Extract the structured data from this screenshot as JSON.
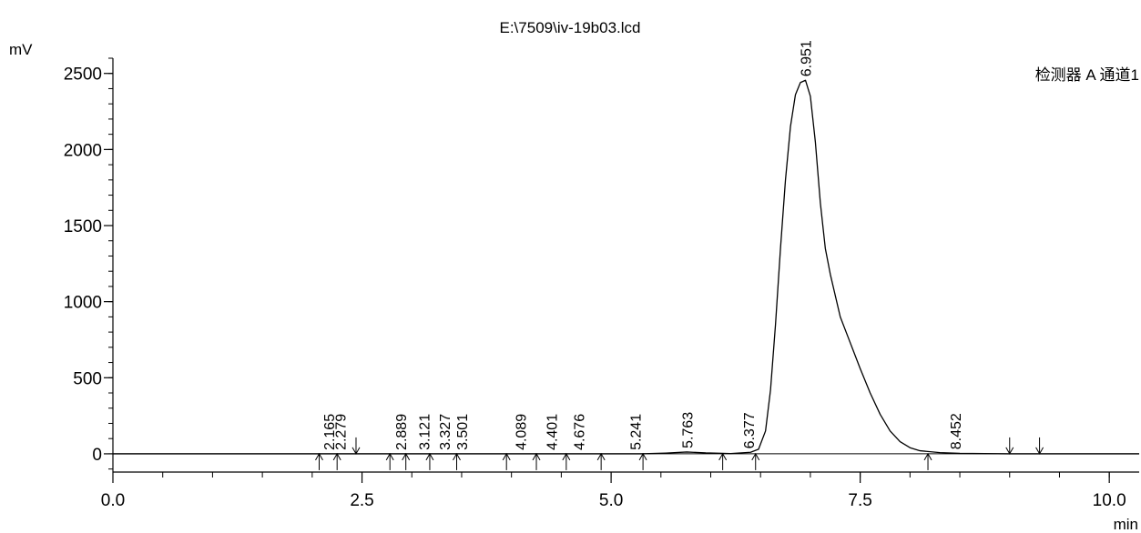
{
  "chart_data": {
    "type": "line",
    "title": "E:\\7509\\iv-19b03.lcd",
    "ylabel": "mV",
    "xlabel": "min",
    "legend": "检测器 A 通道1",
    "legend_position": "top-right",
    "grid": false,
    "xlim": [
      0.0,
      10.3
    ],
    "ylim": [
      -120,
      2600
    ],
    "x_ticks": [
      "0.0",
      "2.5",
      "5.0",
      "7.5",
      "10.0"
    ],
    "x_tick_values": [
      0.0,
      2.5,
      5.0,
      7.5,
      10.0
    ],
    "y_ticks": [
      "0",
      "500",
      "1000",
      "1500",
      "2000",
      "2500"
    ],
    "y_tick_values": [
      0,
      500,
      1000,
      1500,
      2000,
      2500
    ],
    "x_minor_step": 0.5,
    "y_minor_step": 100,
    "series": [
      {
        "x": [
          0.0,
          2.0,
          4.0,
          5.3,
          5.55,
          5.76,
          5.95,
          6.2,
          6.4,
          6.48,
          6.55,
          6.6,
          6.65,
          6.7,
          6.75,
          6.8,
          6.85,
          6.9,
          6.951,
          7.0,
          7.05,
          7.1,
          7.15,
          7.2,
          7.3,
          7.4,
          7.5,
          7.6,
          7.7,
          7.8,
          7.9,
          8.0,
          8.1,
          8.3,
          8.5,
          9.0,
          10.3
        ],
        "y": [
          0,
          0,
          0,
          0,
          5,
          12,
          6,
          2,
          10,
          30,
          150,
          420,
          850,
          1350,
          1800,
          2150,
          2360,
          2440,
          2455,
          2350,
          2050,
          1650,
          1350,
          1180,
          900,
          730,
          560,
          400,
          260,
          150,
          80,
          40,
          20,
          8,
          3,
          0,
          0
        ]
      }
    ],
    "peak_labels": [
      {
        "x": 2.165,
        "label": "2.165"
      },
      {
        "x": 2.279,
        "label": "2.279"
      },
      {
        "x": 2.889,
        "label": "2.889"
      },
      {
        "x": 3.121,
        "label": "3.121"
      },
      {
        "x": 3.327,
        "label": "3.327"
      },
      {
        "x": 3.501,
        "label": "3.501"
      },
      {
        "x": 4.089,
        "label": "4.089"
      },
      {
        "x": 4.401,
        "label": "4.401"
      },
      {
        "x": 4.676,
        "label": "4.676"
      },
      {
        "x": 5.241,
        "label": "5.241"
      },
      {
        "x": 5.763,
        "label": "5.763"
      },
      {
        "x": 6.377,
        "label": "6.377"
      },
      {
        "x": 6.951,
        "label": "6.951"
      },
      {
        "x": 8.452,
        "label": "8.452"
      }
    ],
    "markers": [
      {
        "x": 2.07,
        "dir": "up"
      },
      {
        "x": 2.25,
        "dir": "up"
      },
      {
        "x": 2.44,
        "dir": "down"
      },
      {
        "x": 2.78,
        "dir": "up"
      },
      {
        "x": 2.94,
        "dir": "up"
      },
      {
        "x": 3.18,
        "dir": "up"
      },
      {
        "x": 3.45,
        "dir": "up"
      },
      {
        "x": 3.95,
        "dir": "up"
      },
      {
        "x": 4.25,
        "dir": "up"
      },
      {
        "x": 4.55,
        "dir": "up"
      },
      {
        "x": 4.9,
        "dir": "up"
      },
      {
        "x": 5.32,
        "dir": "up"
      },
      {
        "x": 6.12,
        "dir": "up"
      },
      {
        "x": 6.45,
        "dir": "up"
      },
      {
        "x": 8.18,
        "dir": "up"
      },
      {
        "x": 9.0,
        "dir": "down"
      },
      {
        "x": 9.3,
        "dir": "down"
      }
    ]
  }
}
